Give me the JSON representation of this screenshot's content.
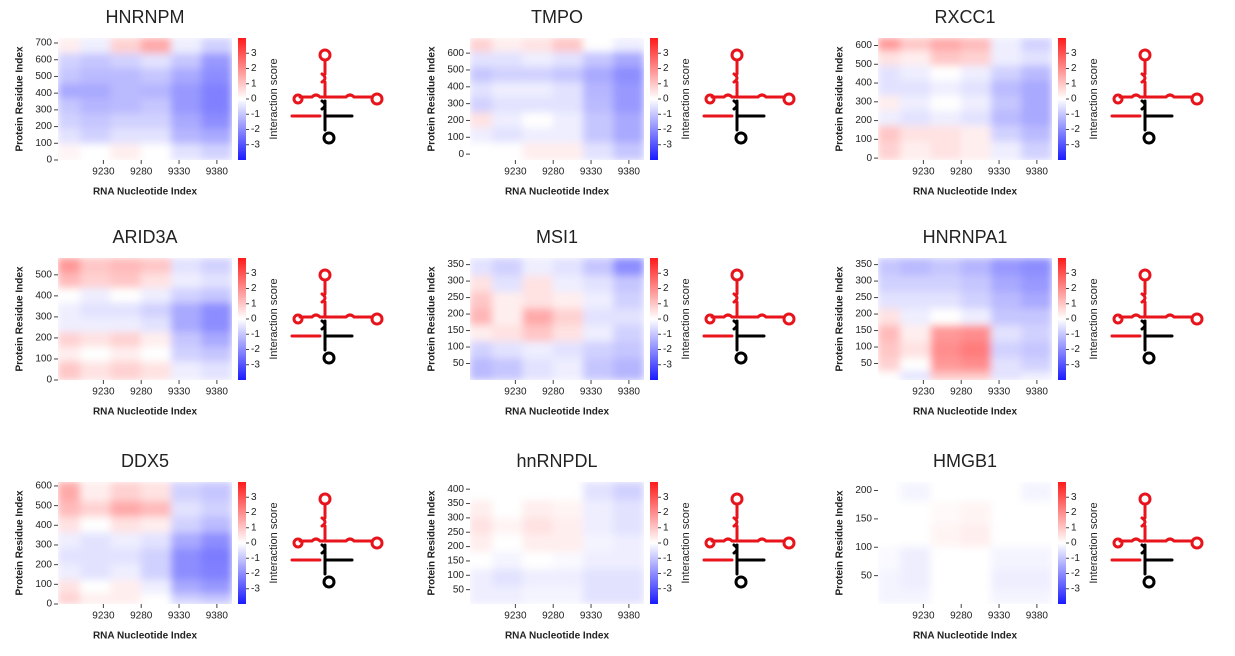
{
  "chart_data": [
    {
      "type": "heatmap",
      "title": "HNRNPM",
      "xlabel": "RNA Nucleotide Index",
      "ylabel": "Protein Residue Index",
      "colorbar_label": "Interaction score",
      "x": [
        9180,
        9220,
        9260,
        9300,
        9340,
        9380
      ],
      "y": [
        680,
        590,
        500,
        410,
        320,
        230,
        140,
        50
      ],
      "values": [
        [
          0.3,
          -0.3,
          0.8,
          1.5,
          -0.3,
          -0.8
        ],
        [
          -0.8,
          -1,
          -0.8,
          -0.5,
          -1,
          -1.8
        ],
        [
          -1,
          -1.2,
          -1.2,
          -1,
          -1.5,
          -2
        ],
        [
          -1.5,
          -1.5,
          -1.2,
          -1.3,
          -1.8,
          -2.2
        ],
        [
          -1,
          -1.3,
          -1.2,
          -1,
          -1.8,
          -2.2
        ],
        [
          -0.8,
          -1,
          -0.8,
          -0.8,
          -1.5,
          -2
        ],
        [
          -0.5,
          -0.8,
          -0.5,
          -0.5,
          -1.3,
          -1.5
        ],
        [
          0.2,
          0,
          0.3,
          0,
          -0.5,
          -0.8
        ]
      ],
      "xlim": [
        9170,
        9400
      ],
      "xticks": [
        9230,
        9280,
        9330,
        9380
      ],
      "ylim": [
        0,
        730
      ],
      "yticks": [
        0,
        100,
        200,
        300,
        400,
        500,
        600,
        700
      ],
      "zlim": [
        -4,
        4
      ],
      "zticks": [
        -3,
        -2,
        -1,
        0,
        1,
        2,
        3
      ],
      "colormap": [
        "#1a1aff",
        "#ffffff",
        "#ff1a1a"
      ]
    },
    {
      "type": "heatmap",
      "title": "TMPO",
      "xlabel": "RNA Nucleotide Index",
      "ylabel": "Protein Residue Index",
      "colorbar_label": "Interaction score",
      "x": [
        9180,
        9220,
        9260,
        9300,
        9340,
        9380
      ],
      "y": [
        650,
        560,
        470,
        380,
        290,
        200,
        110,
        20
      ],
      "values": [
        [
          0.8,
          0.3,
          0.5,
          1,
          0,
          -0.3
        ],
        [
          -0.5,
          -0.5,
          -0.3,
          -0.5,
          -1,
          -1.5
        ],
        [
          -1,
          -0.8,
          -0.8,
          -1,
          -1.5,
          -2
        ],
        [
          -0.5,
          -0.3,
          -0.3,
          -0.5,
          -1.3,
          -1.8
        ],
        [
          -0.8,
          -0.5,
          -0.5,
          -0.5,
          -1.2,
          -1.8
        ],
        [
          0.5,
          -0.3,
          0,
          -0.3,
          -1,
          -1.5
        ],
        [
          -0.3,
          -0.5,
          -0.3,
          -0.3,
          -1,
          -1.5
        ],
        [
          0,
          0,
          0.3,
          0.3,
          -0.5,
          -1
        ]
      ],
      "xlim": [
        9170,
        9400
      ],
      "xticks": [
        9230,
        9280,
        9330,
        9380
      ],
      "ylim": [
        -35,
        690
      ],
      "yticks": [
        0,
        100,
        200,
        300,
        400,
        500,
        600
      ],
      "zlim": [
        -4,
        4
      ],
      "zticks": [
        -3,
        -2,
        -1,
        0,
        1,
        2,
        3
      ],
      "colormap": [
        "#1a1aff",
        "#ffffff",
        "#ff1a1a"
      ]
    },
    {
      "type": "heatmap",
      "title": "RXCC1",
      "xlabel": "RNA Nucleotide Index",
      "ylabel": "Protein Residue Index",
      "colorbar_label": "Interaction score",
      "x": [
        9180,
        9220,
        9260,
        9300,
        9340,
        9380
      ],
      "y": [
        610,
        530,
        450,
        370,
        290,
        210,
        130,
        40
      ],
      "values": [
        [
          1.8,
          1,
          1.5,
          1.2,
          -0.3,
          -0.8
        ],
        [
          0.5,
          0.3,
          1,
          0.8,
          -0.3,
          -0.5
        ],
        [
          -0.5,
          -0.3,
          0,
          -0.3,
          -0.8,
          -1.2
        ],
        [
          -0.5,
          -0.5,
          -0.3,
          -0.5,
          -1.2,
          -1.5
        ],
        [
          0.3,
          -0.3,
          0,
          -0.3,
          -1,
          -1.5
        ],
        [
          -0.3,
          -0.5,
          -0.3,
          -0.5,
          -1.2,
          -1.5
        ],
        [
          1,
          0.5,
          0.5,
          0.3,
          -0.8,
          -1.2
        ],
        [
          0.8,
          0.3,
          0.5,
          0.3,
          -0.3,
          -0.8
        ]
      ],
      "xlim": [
        9170,
        9400
      ],
      "xticks": [
        9230,
        9280,
        9330,
        9380
      ],
      "ylim": [
        -10,
        640
      ],
      "yticks": [
        0,
        100,
        200,
        300,
        400,
        500,
        600
      ],
      "zlim": [
        -4,
        4
      ],
      "zticks": [
        -3,
        -2,
        -1,
        0,
        1,
        2,
        3
      ],
      "colormap": [
        "#1a1aff",
        "#ffffff",
        "#ff1a1a"
      ]
    },
    {
      "type": "heatmap",
      "title": "ARID3A",
      "xlabel": "RNA Nucleotide Index",
      "ylabel": "Protein Residue Index",
      "colorbar_label": "Interaction score",
      "x": [
        9180,
        9220,
        9260,
        9300,
        9340,
        9380
      ],
      "y": [
        540,
        470,
        400,
        330,
        260,
        190,
        120,
        50
      ],
      "values": [
        [
          1.8,
          1,
          1.2,
          1,
          -0.5,
          -0.8
        ],
        [
          1.2,
          0.8,
          1,
          0.5,
          -0.3,
          -0.5
        ],
        [
          0,
          -0.3,
          0,
          -0.3,
          -0.8,
          -1
        ],
        [
          -0.3,
          -0.5,
          -0.5,
          -0.8,
          -1.5,
          -2
        ],
        [
          -0.3,
          -0.3,
          -0.3,
          -0.5,
          -1.5,
          -2
        ],
        [
          0.8,
          0.5,
          0.8,
          0.3,
          -1,
          -1.5
        ],
        [
          0.3,
          0,
          0.3,
          0,
          -0.8,
          -1
        ],
        [
          1,
          0.5,
          0.8,
          0.5,
          -0.3,
          -0.5
        ]
      ],
      "xlim": [
        9170,
        9400
      ],
      "xticks": [
        9230,
        9280,
        9330,
        9380
      ],
      "ylim": [
        0,
        580
      ],
      "yticks": [
        0,
        100,
        200,
        300,
        400,
        500
      ],
      "zlim": [
        -4,
        4
      ],
      "zticks": [
        -3,
        -2,
        -1,
        0,
        1,
        2,
        3
      ],
      "colormap": [
        "#1a1aff",
        "#ffffff",
        "#ff1a1a"
      ]
    },
    {
      "type": "heatmap",
      "title": "MSI1",
      "xlabel": "RNA Nucleotide Index",
      "ylabel": "Protein Residue Index",
      "colorbar_label": "Interaction score",
      "x": [
        9180,
        9220,
        9260,
        9300,
        9340,
        9380
      ],
      "y": [
        340,
        290,
        240,
        190,
        140,
        90,
        40
      ],
      "values": [
        [
          -0.5,
          -0.8,
          -0.3,
          -0.5,
          -1,
          -2
        ],
        [
          0.5,
          -0.5,
          0.5,
          -0.3,
          -0.5,
          -1
        ],
        [
          1,
          0.3,
          0.5,
          0.3,
          -0.3,
          -0.8
        ],
        [
          1.3,
          0.3,
          1.5,
          0.8,
          -0.5,
          -0.5
        ],
        [
          0.3,
          0.5,
          1,
          0.5,
          -0.3,
          -0.8
        ],
        [
          -0.8,
          -0.5,
          -0.3,
          -0.5,
          -0.8,
          -1
        ],
        [
          -1.2,
          -1,
          -0.5,
          -0.3,
          -1,
          -1.3
        ]
      ],
      "xlim": [
        9170,
        9400
      ],
      "xticks": [
        9230,
        9280,
        9330,
        9380
      ],
      "ylim": [
        0,
        370
      ],
      "yticks": [
        50,
        100,
        150,
        200,
        250,
        300,
        350
      ],
      "zlim": [
        -4,
        4
      ],
      "zticks": [
        -3,
        -2,
        -1,
        0,
        1,
        2,
        3
      ],
      "colormap": [
        "#1a1aff",
        "#ffffff",
        "#ff1a1a"
      ]
    },
    {
      "type": "heatmap",
      "title": "HNRNPA1",
      "xlabel": "RNA Nucleotide Index",
      "ylabel": "Protein Residue Index",
      "colorbar_label": "Interaction score",
      "x": [
        9180,
        9220,
        9260,
        9300,
        9340,
        9380
      ],
      "y": [
        340,
        290,
        240,
        190,
        140,
        90,
        40,
        10
      ],
      "values": [
        [
          -1,
          -1.2,
          -1,
          -1.3,
          -1.8,
          -2
        ],
        [
          -0.8,
          -0.8,
          -0.8,
          -1,
          -1.5,
          -1.8
        ],
        [
          -0.5,
          -0.5,
          -0.5,
          -0.8,
          -1.2,
          -1.5
        ],
        [
          0.5,
          -0.3,
          0,
          -0.3,
          -1,
          -1
        ],
        [
          1.2,
          0.3,
          1.8,
          2,
          -0.5,
          -0.8
        ],
        [
          1,
          0.5,
          2,
          2.3,
          -0.8,
          -1
        ],
        [
          0.8,
          0,
          1.8,
          2,
          -0.5,
          -0.8
        ],
        [
          0,
          -0.5,
          1,
          1,
          -0.5,
          -0.3
        ]
      ],
      "xlim": [
        9170,
        9400
      ],
      "xticks": [
        9230,
        9280,
        9330,
        9380
      ],
      "ylim": [
        0,
        370
      ],
      "yticks": [
        50,
        100,
        150,
        200,
        250,
        300,
        350
      ],
      "zlim": [
        -4,
        4
      ],
      "zticks": [
        -3,
        -2,
        -1,
        0,
        1,
        2,
        3
      ],
      "colormap": [
        "#1a1aff",
        "#ffffff",
        "#ff1a1a"
      ]
    },
    {
      "type": "heatmap",
      "title": "DDX5",
      "xlabel": "RNA Nucleotide Index",
      "ylabel": "Protein Residue Index",
      "colorbar_label": "Interaction score",
      "x": [
        9180,
        9220,
        9260,
        9300,
        9340,
        9380
      ],
      "y": [
        560,
        480,
        400,
        320,
        240,
        160,
        80,
        20
      ],
      "values": [
        [
          1.5,
          0.3,
          0.8,
          0.5,
          -0.8,
          -1
        ],
        [
          1.2,
          0.8,
          1.5,
          1.2,
          -0.5,
          -0.8
        ],
        [
          0.5,
          0,
          0.5,
          0.3,
          -0.8,
          -1.2
        ],
        [
          -0.3,
          -0.5,
          -0.3,
          -0.5,
          -1.5,
          -2
        ],
        [
          -0.5,
          -0.5,
          -0.5,
          -0.8,
          -2,
          -2.3
        ],
        [
          -0.3,
          -0.5,
          -0.3,
          -0.8,
          -2,
          -2.2
        ],
        [
          0.5,
          0,
          0.3,
          -0.3,
          -1.5,
          -1.8
        ],
        [
          0.8,
          0.3,
          0.3,
          0,
          -0.8,
          -1
        ]
      ],
      "xlim": [
        9170,
        9400
      ],
      "xticks": [
        9230,
        9280,
        9330,
        9380
      ],
      "ylim": [
        0,
        620
      ],
      "yticks": [
        0,
        100,
        200,
        300,
        400,
        500,
        600
      ],
      "zlim": [
        -4,
        4
      ],
      "zticks": [
        -3,
        -2,
        -1,
        0,
        1,
        2,
        3
      ],
      "colormap": [
        "#1a1aff",
        "#ffffff",
        "#ff1a1a"
      ]
    },
    {
      "type": "heatmap",
      "title": "hnRNPDL",
      "xlabel": "RNA Nucleotide Index",
      "ylabel": "Protein Residue Index",
      "colorbar_label": "Interaction score",
      "x": [
        9180,
        9220,
        9260,
        9300,
        9340,
        9380
      ],
      "y": [
        390,
        330,
        270,
        210,
        150,
        90,
        30
      ],
      "values": [
        [
          0,
          0,
          0,
          0,
          -0.5,
          -0.8
        ],
        [
          0.3,
          0,
          0.3,
          0.2,
          -0.3,
          -0.5
        ],
        [
          0.5,
          0.2,
          0.5,
          0.3,
          -0.3,
          -0.5
        ],
        [
          0.3,
          0,
          0.3,
          0.3,
          -0.2,
          -0.3
        ],
        [
          0,
          -0.2,
          0,
          -0.1,
          -0.3,
          -0.3
        ],
        [
          -0.3,
          -0.5,
          -0.3,
          -0.3,
          -0.5,
          -0.5
        ],
        [
          -0.3,
          -0.3,
          -0.2,
          -0.2,
          -0.5,
          -0.5
        ]
      ],
      "xlim": [
        9170,
        9400
      ],
      "xticks": [
        9230,
        9280,
        9330,
        9380
      ],
      "ylim": [
        0,
        425
      ],
      "yticks": [
        50,
        100,
        150,
        200,
        250,
        300,
        350,
        400
      ],
      "zlim": [
        -4,
        4
      ],
      "zticks": [
        -3,
        -2,
        -1,
        0,
        1,
        2,
        3
      ],
      "colormap": [
        "#1a1aff",
        "#ffffff",
        "#ff1a1a"
      ]
    },
    {
      "type": "heatmap",
      "title": "HMGB1",
      "xlabel": "RNA Nucleotide Index",
      "ylabel": "Protein Residue Index",
      "colorbar_label": "Interaction score",
      "x": [
        9180,
        9220,
        9260,
        9300,
        9340,
        9380
      ],
      "y": [
        200,
        160,
        120,
        80,
        40,
        10
      ],
      "values": [
        [
          0,
          -0.2,
          0,
          0,
          0,
          -0.2
        ],
        [
          0,
          0,
          0.1,
          0.2,
          0,
          0
        ],
        [
          0,
          0,
          0.2,
          0.3,
          0,
          0
        ],
        [
          -0.1,
          -0.3,
          0,
          0,
          -0.2,
          -0.2
        ],
        [
          -0.2,
          -0.3,
          0,
          0,
          -0.3,
          -0.3
        ],
        [
          -0.2,
          -0.2,
          0,
          0,
          -0.2,
          -0.2
        ]
      ],
      "xlim": [
        9170,
        9400
      ],
      "xticks": [
        9230,
        9280,
        9330,
        9380
      ],
      "ylim": [
        0,
        215
      ],
      "yticks": [
        50,
        100,
        150,
        200
      ],
      "zlim": [
        -4,
        4
      ],
      "zticks": [
        -3,
        -2,
        -1,
        0,
        1,
        2,
        3
      ],
      "colormap": [
        "#1a1aff",
        "#ffffff",
        "#ff1a1a"
      ]
    }
  ]
}
